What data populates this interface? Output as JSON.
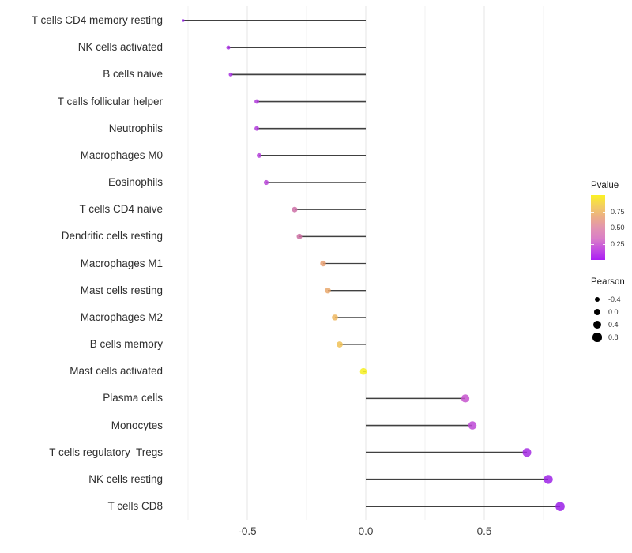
{
  "chart_data": {
    "type": "lollipop",
    "title": "",
    "xlabel": "",
    "ylabel": "",
    "x_tick_labels": [
      "-0.5",
      "0.0",
      "0.5"
    ],
    "x_ticks": [
      -0.5,
      0.0,
      0.5
    ],
    "x_minor_ticks": [
      -0.75,
      -0.25,
      0.25,
      0.75
    ],
    "xlim": [
      -0.87,
      0.91
    ],
    "grid": true,
    "rows": [
      {
        "label": "T cells CD4 memory resting",
        "pearson": -0.77,
        "pvalue": 0.02,
        "color": "#9320E2",
        "diameter": 3.2
      },
      {
        "label": "NK cells activated",
        "pearson": -0.58,
        "pvalue": 0.07,
        "color": "#A72FE0",
        "diameter": 5.0
      },
      {
        "label": "B cells naive",
        "pearson": -0.57,
        "pvalue": 0.07,
        "color": "#A72FE0",
        "diameter": 5.0
      },
      {
        "label": "T cells follicular helper",
        "pearson": -0.46,
        "pvalue": 0.11,
        "color": "#B13CDC",
        "diameter": 5.8
      },
      {
        "label": "Neutrophils",
        "pearson": -0.46,
        "pvalue": 0.11,
        "color": "#B13CDC",
        "diameter": 5.8
      },
      {
        "label": "Macrophages M0",
        "pearson": -0.45,
        "pvalue": 0.12,
        "color": "#B441DA",
        "diameter": 6.0
      },
      {
        "label": "Eosinophils",
        "pearson": -0.42,
        "pvalue": 0.14,
        "color": "#B847D7",
        "diameter": 6.2
      },
      {
        "label": "T cells CD4 naive",
        "pearson": -0.3,
        "pvalue": 0.33,
        "color": "#CD6FA6",
        "diameter": 7.0
      },
      {
        "label": "Dendritic cells resting",
        "pearson": -0.28,
        "pvalue": 0.34,
        "color": "#CB6FA1",
        "diameter": 7.0
      },
      {
        "label": "Macrophages M1",
        "pearson": -0.18,
        "pvalue": 0.52,
        "color": "#E7A072",
        "diameter": 7.4
      },
      {
        "label": "Mast cells resting",
        "pearson": -0.16,
        "pvalue": 0.55,
        "color": "#E9A86C",
        "diameter": 7.4
      },
      {
        "label": "Macrophages M2",
        "pearson": -0.13,
        "pvalue": 0.61,
        "color": "#EEB75F",
        "diameter": 7.6
      },
      {
        "label": "B cells memory",
        "pearson": -0.11,
        "pvalue": 0.64,
        "color": "#F0C156",
        "diameter": 7.8
      },
      {
        "label": "Mast cells activated",
        "pearson": -0.01,
        "pvalue": 0.97,
        "color": "#F6F021",
        "diameter": 8.7
      },
      {
        "label": "Plasma cells",
        "pearson": 0.42,
        "pvalue": 0.19,
        "color": "#C553CE",
        "diameter": 10.3
      },
      {
        "label": "Monocytes",
        "pearson": 0.45,
        "pvalue": 0.16,
        "color": "#BD49D6",
        "diameter": 10.5
      },
      {
        "label": "T cells regulatory  Tregs",
        "pearson": 0.68,
        "pvalue": 0.08,
        "color": "#A42BE3",
        "diameter": 11.0
      },
      {
        "label": "NK cells resting",
        "pearson": 0.77,
        "pvalue": 0.04,
        "color": "#9D23E6",
        "diameter": 11.4
      },
      {
        "label": "T cells CD8",
        "pearson": 0.82,
        "pvalue": 0.02,
        "color": "#9A1EE8",
        "diameter": 11.7
      }
    ],
    "legend": {
      "color": {
        "title": "Pvalue",
        "tick_labels": [
          "0.75",
          "0.50",
          "0.25"
        ],
        "tick_values": [
          0.75,
          0.5,
          0.25
        ],
        "range": [
          0,
          1
        ],
        "gradient_top_to_bottom": [
          "#FBF124",
          "#F3CE60",
          "#ECAE85",
          "#E294B0",
          "#DA7FC6",
          "#C44FE0",
          "#AB1DF4"
        ]
      },
      "size": {
        "title": "Pearson",
        "entries": [
          {
            "label": "-0.4",
            "diameter": 6.7
          },
          {
            "label": "0.0",
            "diameter": 8.7
          },
          {
            "label": "0.4",
            "diameter": 10.0
          },
          {
            "label": "0.8",
            "diameter": 11.3
          }
        ]
      }
    },
    "colors": {
      "stem": "#404040",
      "grid_major": "#E4E4E4",
      "grid_minor": "#F0F0F0",
      "axis_text": "#2E2E2E",
      "background": "#FFFFFF",
      "legend_dot": "#000000"
    }
  }
}
